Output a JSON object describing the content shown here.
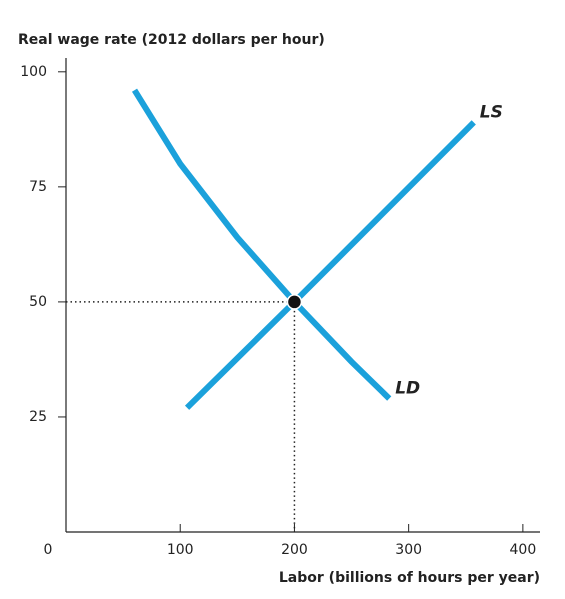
{
  "chart_data": {
    "type": "line",
    "y_label": "Real wage rate (2012 dollars per hour)",
    "x_label": "Labor (billions of hours per year)",
    "xlim": [
      0,
      415
    ],
    "ylim": [
      0,
      103
    ],
    "xticks": [
      0,
      100,
      200,
      300,
      400
    ],
    "yticks": [
      25,
      50,
      75,
      100
    ],
    "series": [
      {
        "name": "LD",
        "color": "#1ba1db",
        "x": [
          60,
          100,
          150,
          200,
          250,
          283
        ],
        "values": [
          96,
          80,
          64,
          50,
          37,
          29
        ]
      },
      {
        "name": "LS",
        "color": "#1ba1db",
        "x": [
          106,
          200,
          357
        ],
        "values": [
          27,
          50,
          89
        ]
      }
    ],
    "equilibrium": {
      "x": 200,
      "y": 50,
      "color": "#111111"
    }
  }
}
